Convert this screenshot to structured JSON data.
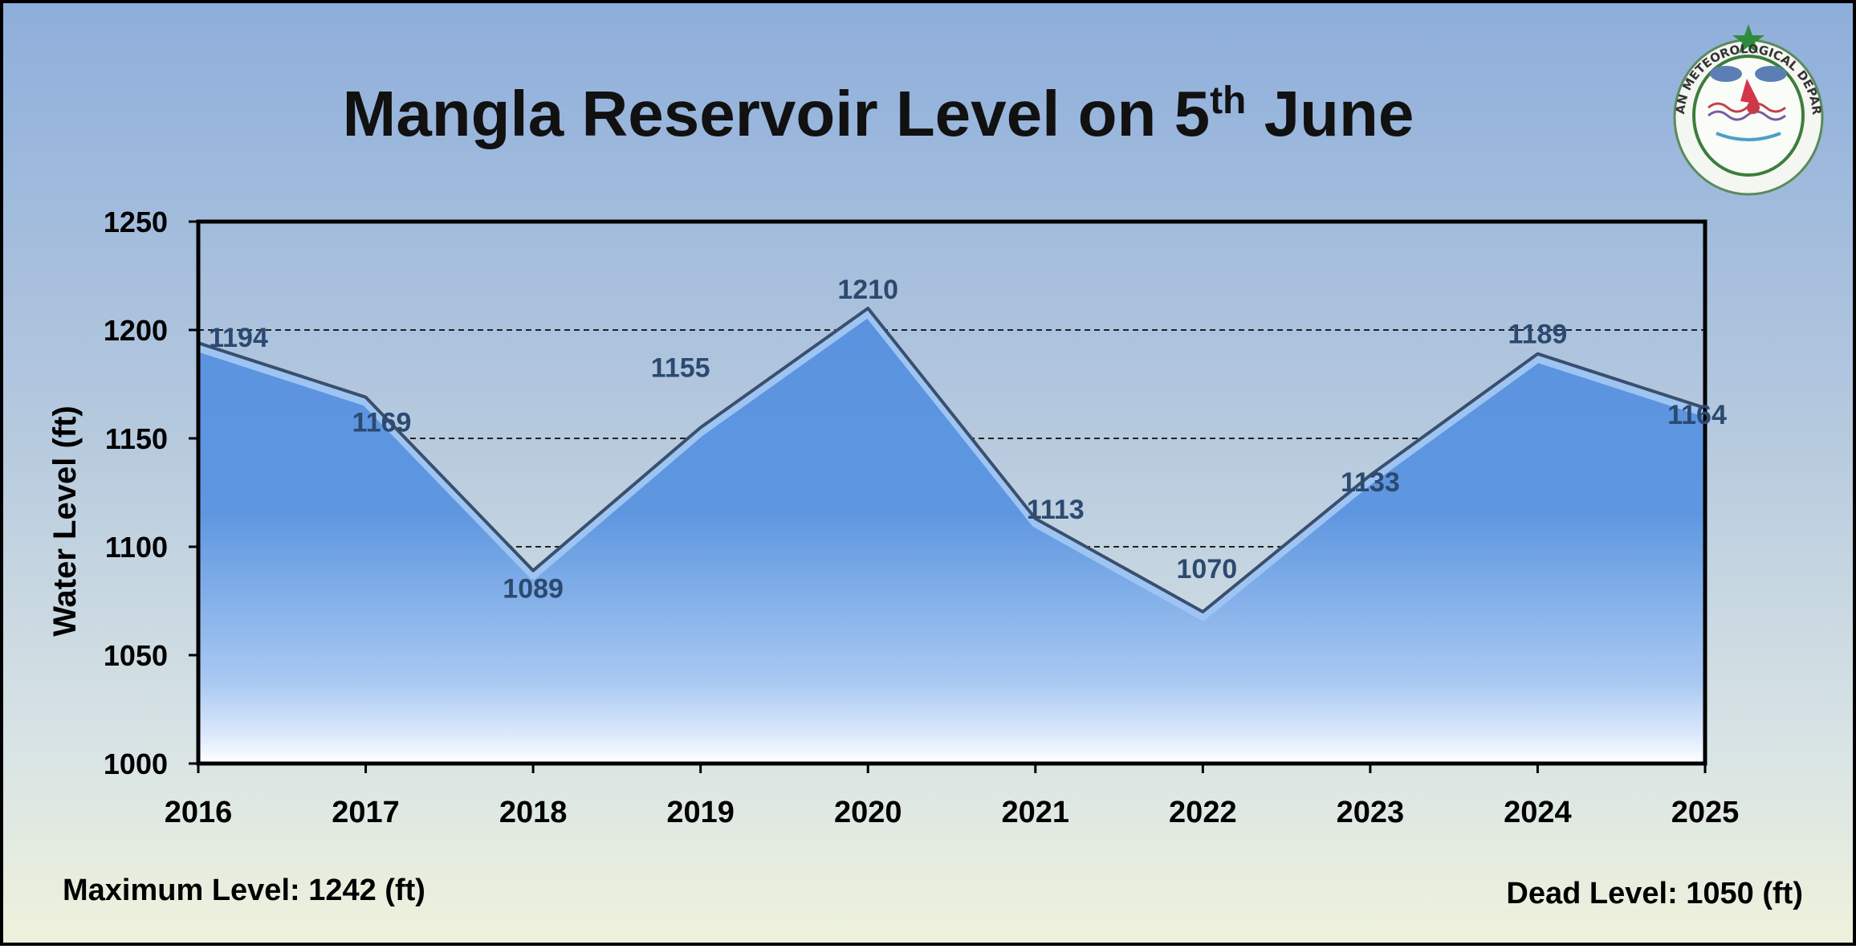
{
  "title": {
    "main": "Mangla Reservoir Level on 5",
    "sup": "th",
    "tail": " June"
  },
  "footer": {
    "max_level": "Maximum Level: 1242 (ft)",
    "dead_level": "Dead Level: 1050 (ft)"
  },
  "logo": {
    "text": "PAKISTAN METEOROLOGICAL DEPARTMENT"
  },
  "colors": {
    "fill_top": "#5590dd",
    "fill_bottom": "#ffffff",
    "line": "#3a4f6e",
    "label": "#2c4a70"
  },
  "chart_data": {
    "type": "area",
    "title": "Mangla Reservoir Level on 5th June",
    "xlabel": "",
    "ylabel": "Water Level (ft)",
    "x": [
      "2016",
      "2017",
      "2018",
      "2019",
      "2020",
      "2021",
      "2022",
      "2023",
      "2024",
      "2025"
    ],
    "series": [
      {
        "values": [
          1194,
          1169,
          1089,
          1155,
          1210,
          1113,
          1070,
          1133,
          1189,
          1164
        ]
      }
    ],
    "data_labels": [
      "1194",
      "1169",
      "1089",
      "1155",
      "1210",
      "1113",
      "1070",
      "1133",
      "1189",
      "1164"
    ],
    "y_ticks": [
      "1000",
      "1050",
      "1100",
      "1150",
      "1200",
      "1250"
    ],
    "ylim": [
      1000,
      1250
    ],
    "grid": true,
    "legend": "none"
  }
}
